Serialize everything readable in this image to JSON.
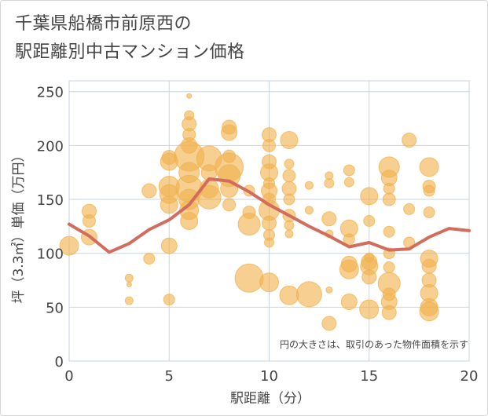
{
  "title": {
    "line1": "千葉県船橋市前原西の",
    "line2": "駅距離別中古マンション価格"
  },
  "colors": {
    "bubble": "#f0b24e",
    "line": "#d26c5c",
    "grid": "#c8d3e0",
    "text": "#444444"
  },
  "chart_data": {
    "type": "scatter",
    "xlabel": "駅距離（分）",
    "ylabel": "坪（3.3㎡）単価（万円）",
    "xlim": [
      0,
      20
    ],
    "ylim": [
      0,
      260
    ],
    "x_ticks": [
      "0",
      "5",
      "10",
      "15",
      "20"
    ],
    "y_ticks": [
      "0",
      "50",
      "100",
      "150",
      "200",
      "250"
    ],
    "note": "円の大きさは、取引のあった物件面積を示す",
    "grid": true,
    "series": [
      {
        "type": "bubble",
        "points": [
          {
            "x": 0,
            "y": 107,
            "s": 12
          },
          {
            "x": 1,
            "y": 139,
            "s": 9
          },
          {
            "x": 1,
            "y": 130,
            "s": 8
          },
          {
            "x": 1,
            "y": 115,
            "s": 10
          },
          {
            "x": 3,
            "y": 77,
            "s": 5
          },
          {
            "x": 3,
            "y": 71,
            "s": 3
          },
          {
            "x": 3,
            "y": 56,
            "s": 5
          },
          {
            "x": 4,
            "y": 158,
            "s": 9
          },
          {
            "x": 4,
            "y": 95,
            "s": 7
          },
          {
            "x": 5,
            "y": 189,
            "s": 9
          },
          {
            "x": 5,
            "y": 185,
            "s": 11
          },
          {
            "x": 5,
            "y": 162,
            "s": 13
          },
          {
            "x": 5,
            "y": 155,
            "s": 12
          },
          {
            "x": 5,
            "y": 145,
            "s": 11
          },
          {
            "x": 5,
            "y": 107,
            "s": 10
          },
          {
            "x": 5,
            "y": 57,
            "s": 7
          },
          {
            "x": 6,
            "y": 246,
            "s": 3
          },
          {
            "x": 6,
            "y": 228,
            "s": 6
          },
          {
            "x": 6,
            "y": 220,
            "s": 9
          },
          {
            "x": 6,
            "y": 210,
            "s": 8
          },
          {
            "x": 6,
            "y": 200,
            "s": 10
          },
          {
            "x": 6,
            "y": 190,
            "s": 19
          },
          {
            "x": 6,
            "y": 175,
            "s": 13
          },
          {
            "x": 6,
            "y": 160,
            "s": 17
          },
          {
            "x": 6,
            "y": 150,
            "s": 13
          },
          {
            "x": 6,
            "y": 140,
            "s": 12
          },
          {
            "x": 6,
            "y": 130,
            "s": 11
          },
          {
            "x": 7,
            "y": 188,
            "s": 16
          },
          {
            "x": 7,
            "y": 175,
            "s": 10
          },
          {
            "x": 7,
            "y": 160,
            "s": 12
          },
          {
            "x": 7,
            "y": 152,
            "s": 15
          },
          {
            "x": 8,
            "y": 217,
            "s": 9
          },
          {
            "x": 8,
            "y": 212,
            "s": 10
          },
          {
            "x": 8,
            "y": 190,
            "s": 8
          },
          {
            "x": 8,
            "y": 180,
            "s": 18
          },
          {
            "x": 8,
            "y": 172,
            "s": 14
          },
          {
            "x": 8,
            "y": 160,
            "s": 11
          },
          {
            "x": 8,
            "y": 145,
            "s": 8
          },
          {
            "x": 9,
            "y": 158,
            "s": 7
          },
          {
            "x": 9,
            "y": 138,
            "s": 8
          },
          {
            "x": 9,
            "y": 127,
            "s": 14
          },
          {
            "x": 9,
            "y": 77,
            "s": 18
          },
          {
            "x": 10,
            "y": 210,
            "s": 9
          },
          {
            "x": 10,
            "y": 200,
            "s": 8
          },
          {
            "x": 10,
            "y": 185,
            "s": 9
          },
          {
            "x": 10,
            "y": 175,
            "s": 11
          },
          {
            "x": 10,
            "y": 165,
            "s": 7
          },
          {
            "x": 10,
            "y": 158,
            "s": 10
          },
          {
            "x": 10,
            "y": 150,
            "s": 8
          },
          {
            "x": 10,
            "y": 140,
            "s": 13
          },
          {
            "x": 10,
            "y": 128,
            "s": 9
          },
          {
            "x": 10,
            "y": 117,
            "s": 7
          },
          {
            "x": 10,
            "y": 110,
            "s": 6
          },
          {
            "x": 10,
            "y": 73,
            "s": 12
          },
          {
            "x": 11,
            "y": 205,
            "s": 11
          },
          {
            "x": 11,
            "y": 183,
            "s": 6
          },
          {
            "x": 11,
            "y": 172,
            "s": 8
          },
          {
            "x": 11,
            "y": 160,
            "s": 9
          },
          {
            "x": 11,
            "y": 150,
            "s": 7
          },
          {
            "x": 11,
            "y": 135,
            "s": 8
          },
          {
            "x": 11,
            "y": 126,
            "s": 6
          },
          {
            "x": 11,
            "y": 118,
            "s": 5
          },
          {
            "x": 11,
            "y": 61,
            "s": 12
          },
          {
            "x": 12,
            "y": 163,
            "s": 5
          },
          {
            "x": 12,
            "y": 140,
            "s": 5
          },
          {
            "x": 12,
            "y": 62,
            "s": 16
          },
          {
            "x": 13,
            "y": 172,
            "s": 5
          },
          {
            "x": 13,
            "y": 165,
            "s": 6
          },
          {
            "x": 13,
            "y": 132,
            "s": 9
          },
          {
            "x": 13,
            "y": 118,
            "s": 5
          },
          {
            "x": 13,
            "y": 66,
            "s": 4
          },
          {
            "x": 13,
            "y": 35,
            "s": 9
          },
          {
            "x": 14,
            "y": 177,
            "s": 7
          },
          {
            "x": 14,
            "y": 166,
            "s": 6
          },
          {
            "x": 14,
            "y": 123,
            "s": 11
          },
          {
            "x": 14,
            "y": 113,
            "s": 7
          },
          {
            "x": 14,
            "y": 90,
            "s": 10
          },
          {
            "x": 14,
            "y": 85,
            "s": 12
          },
          {
            "x": 14,
            "y": 55,
            "s": 10
          },
          {
            "x": 15,
            "y": 153,
            "s": 11
          },
          {
            "x": 15,
            "y": 130,
            "s": 7
          },
          {
            "x": 15,
            "y": 96,
            "s": 6
          },
          {
            "x": 15,
            "y": 92,
            "s": 10
          },
          {
            "x": 15,
            "y": 88,
            "s": 11
          },
          {
            "x": 15,
            "y": 78,
            "s": 9
          },
          {
            "x": 15,
            "y": 48,
            "s": 12
          },
          {
            "x": 16,
            "y": 180,
            "s": 13
          },
          {
            "x": 16,
            "y": 170,
            "s": 10
          },
          {
            "x": 16,
            "y": 160,
            "s": 7
          },
          {
            "x": 16,
            "y": 150,
            "s": 8
          },
          {
            "x": 16,
            "y": 120,
            "s": 7
          },
          {
            "x": 16,
            "y": 100,
            "s": 7
          },
          {
            "x": 16,
            "y": 87,
            "s": 7
          },
          {
            "x": 16,
            "y": 72,
            "s": 14
          },
          {
            "x": 16,
            "y": 62,
            "s": 8
          },
          {
            "x": 16,
            "y": 55,
            "s": 10
          },
          {
            "x": 16,
            "y": 45,
            "s": 9
          },
          {
            "x": 17,
            "y": 205,
            "s": 9
          },
          {
            "x": 17,
            "y": 141,
            "s": 7
          },
          {
            "x": 17,
            "y": 110,
            "s": 7
          },
          {
            "x": 18,
            "y": 180,
            "s": 12
          },
          {
            "x": 18,
            "y": 162,
            "s": 8
          },
          {
            "x": 18,
            "y": 158,
            "s": 7
          },
          {
            "x": 18,
            "y": 138,
            "s": 7
          },
          {
            "x": 18,
            "y": 95,
            "s": 11
          },
          {
            "x": 18,
            "y": 88,
            "s": 9
          },
          {
            "x": 18,
            "y": 75,
            "s": 9
          },
          {
            "x": 18,
            "y": 63,
            "s": 11
          },
          {
            "x": 18,
            "y": 50,
            "s": 11
          },
          {
            "x": 18,
            "y": 46,
            "s": 12
          }
        ]
      },
      {
        "type": "line",
        "x": [
          0,
          1,
          2,
          3,
          4,
          5,
          6,
          7,
          8,
          9,
          10,
          11,
          12,
          13,
          14,
          15,
          16,
          17,
          18,
          19,
          20
        ],
        "y": [
          127,
          116,
          101,
          109,
          122,
          131,
          145,
          169,
          167,
          157,
          145,
          135,
          125,
          116,
          106,
          110,
          103,
          104,
          115,
          123,
          121
        ]
      }
    ]
  }
}
